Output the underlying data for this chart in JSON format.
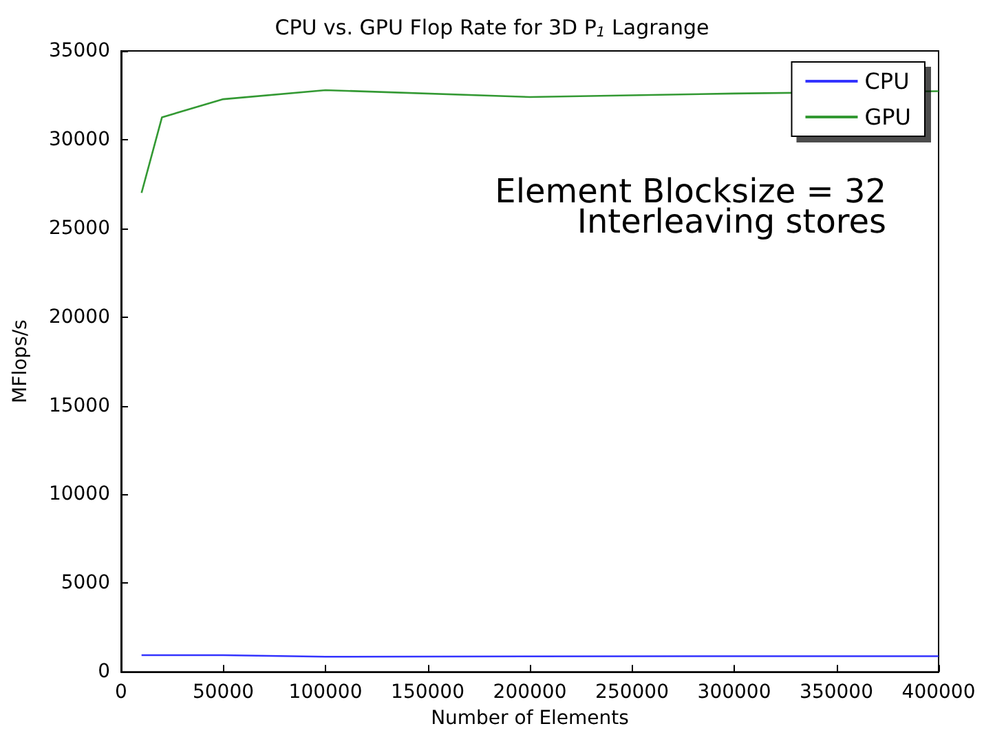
{
  "chart_data": {
    "type": "line",
    "title": "CPU vs. GPU Flop Rate for 3D P$_{1}$ Lagrange",
    "xlabel": "Number of Elements",
    "ylabel": "MFlops/s",
    "x": [
      10000,
      20000,
      50000,
      100000,
      200000,
      300000,
      400000
    ],
    "series": [
      {
        "name": "CPU",
        "color": "#3333ff",
        "values": [
          940,
          940,
          940,
          850,
          870,
          880,
          880
        ]
      },
      {
        "name": "GPU",
        "color": "#339933",
        "values": [
          27000,
          31260,
          32280,
          32790,
          32400,
          32600,
          32730
        ]
      }
    ],
    "xlim": [
      0,
      400000
    ],
    "xticks": [
      0,
      50000,
      100000,
      150000,
      200000,
      250000,
      300000,
      350000,
      400000
    ],
    "ylim": [
      0,
      35000
    ],
    "yticks": [
      0,
      5000,
      10000,
      15000,
      20000,
      25000,
      30000,
      35000
    ],
    "annotations": [
      "Element Blocksize = 32",
      "Interleaving stores"
    ],
    "grid": false,
    "legend": "top right",
    "marker": "none",
    "line_style": "solid"
  }
}
